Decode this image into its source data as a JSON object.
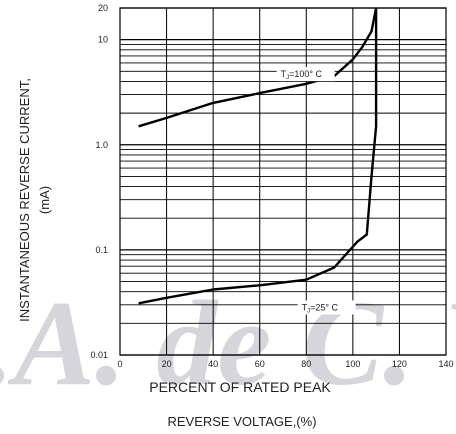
{
  "chart_data": {
    "type": "line",
    "xlabel_line1": "PERCENT OF RATED PEAK",
    "xlabel_line2": "REVERSE VOLTAGE,(%)",
    "ylabel": "INSTANTANEOUS REVERSE CURRENT,",
    "ylabel_unit": "(mA)",
    "xlim": [
      0,
      140
    ],
    "ylim": [
      0.01,
      20
    ],
    "yscale": "log",
    "grid": true,
    "x_ticks": [
      {
        "value": 0,
        "label": "0"
      },
      {
        "value": 20,
        "label": "20"
      },
      {
        "value": 40,
        "label": "40"
      },
      {
        "value": 60,
        "label": "60"
      },
      {
        "value": 80,
        "label": "80"
      },
      {
        "value": 100,
        "label": "100"
      },
      {
        "value": 120,
        "label": "120"
      },
      {
        "value": 140,
        "label": "140"
      }
    ],
    "y_ticks": [
      {
        "value": 0.01,
        "label": "0.01"
      },
      {
        "value": 0.1,
        "label": "0.1"
      },
      {
        "value": 1,
        "label": "1.0"
      },
      {
        "value": 10,
        "label": "10"
      },
      {
        "value": 20,
        "label": "20"
      }
    ],
    "series": [
      {
        "name": "TJ=100° C",
        "label_main": "T",
        "label_sub": "J",
        "label_rest": "=100° C",
        "x": [
          8,
          20,
          40,
          60,
          80,
          92,
          100,
          104,
          108,
          110
        ],
        "y": [
          1.5,
          1.8,
          2.5,
          3.1,
          3.8,
          4.5,
          6.5,
          8.5,
          12,
          20
        ]
      },
      {
        "name": "TJ=25° C",
        "label_main": "T",
        "label_sub": "J",
        "label_rest": "=25° C",
        "x": [
          8,
          20,
          40,
          60,
          80,
          92,
          102,
          106,
          108,
          110,
          110
        ],
        "y": [
          0.031,
          0.035,
          0.042,
          0.046,
          0.052,
          0.068,
          0.12,
          0.14,
          0.5,
          1.5,
          20
        ]
      }
    ]
  },
  "watermark": {
    "text": "S.A. de C. V.",
    "color": "#c8c8d0"
  },
  "colors": {
    "line": "#000000",
    "grid": "#000000",
    "text": "#222222"
  }
}
